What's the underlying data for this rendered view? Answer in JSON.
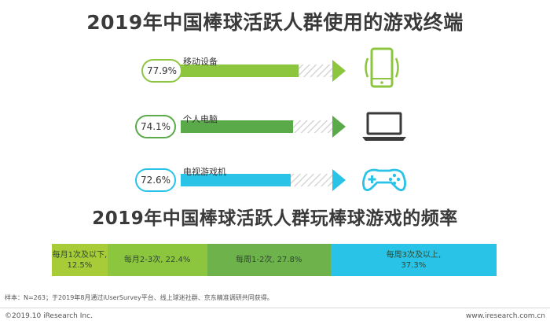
{
  "chart_data": [
    {
      "type": "bar",
      "title": "2019年中国棒球活跃人群使用的游戏终端",
      "categories": [
        "移动设备",
        "个人电脑",
        "电视游戏机"
      ],
      "values": [
        77.9,
        74.1,
        72.6
      ],
      "value_labels": [
        "77.9%",
        "74.1%",
        "72.6%"
      ],
      "icons": [
        "mobile-phone-icon",
        "laptop-icon",
        "gamepad-icon"
      ],
      "colors": [
        "#8cc63f",
        "#5aaa4a",
        "#29c3e8"
      ]
    },
    {
      "type": "bar",
      "title": "2019年中国棒球活跃人群玩棒球游戏的频率",
      "series": [
        {
          "label_line1": "每月1次及以下,",
          "label_line2": "12.5%",
          "value": 12.5,
          "color": "#a7cc37"
        },
        {
          "label_line1": "每月2-3次, 22.4%",
          "label_line2": "",
          "value": 22.4,
          "color": "#8cc63f"
        },
        {
          "label_line1": "每周1-2次, 27.8%",
          "label_line2": "",
          "value": 27.8,
          "color": "#6db24b"
        },
        {
          "label_line1": "每周3次及以上,",
          "label_line2": "37.3%",
          "value": 37.3,
          "color": "#29c3e8"
        }
      ]
    }
  ],
  "footnote": "样本：N=263；于2019年8月通过iUserSurvey平台、线上球迷社群、京东精准调研共同获得。",
  "copyright": "©2019.10 iResearch Inc.",
  "website": "www.iresearch.com.cn"
}
